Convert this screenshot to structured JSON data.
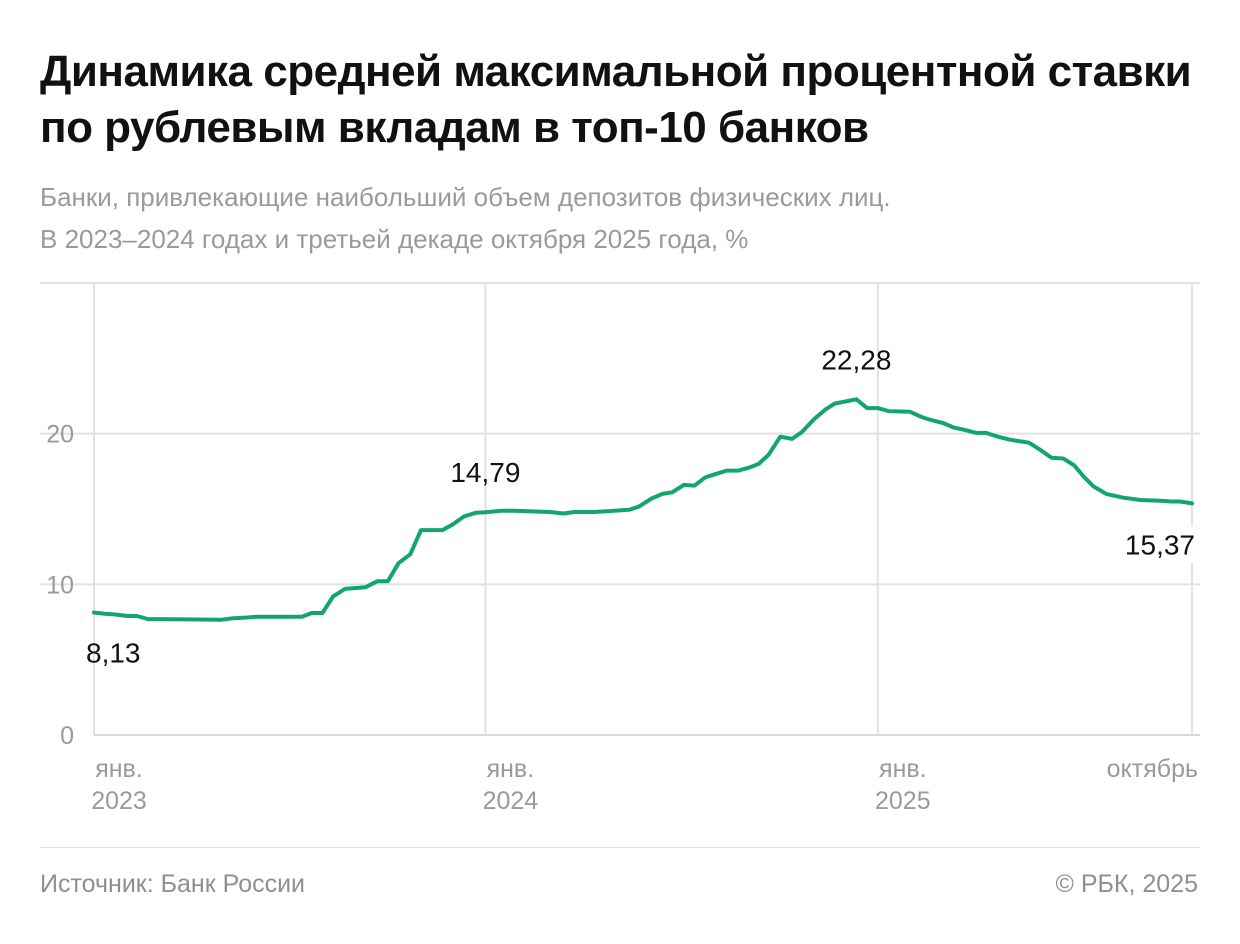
{
  "chart_data": {
    "type": "line",
    "title": "Динамика средней максимальной процентной ставки по рублевым вкладам в топ-10 банков",
    "subtitle_lines": [
      "Банки, привлекающие наибольший объем депозитов физических лиц.",
      "В 2023–2024 годах и третьей декаде октября 2025 года, %"
    ],
    "xlabel": "",
    "ylabel": "",
    "ylim": [
      0,
      30
    ],
    "xlim": [
      "2023-01-01",
      "2025-10-21"
    ],
    "grid": true,
    "line_color": "#13a66a",
    "y_ticks": [
      {
        "value": 0,
        "label": "0"
      },
      {
        "value": 10,
        "label": "10"
      },
      {
        "value": 20,
        "label": "20"
      }
    ],
    "x_ticks": [
      {
        "date": "2023-01-01",
        "line1": "янв.",
        "line2": "2023"
      },
      {
        "date": "2024-01-01",
        "line1": "янв.",
        "line2": "2024"
      },
      {
        "date": "2025-01-01",
        "line1": "янв.",
        "line2": "2025"
      },
      {
        "date": "2025-10-21",
        "line1": "октябрь",
        "line2": ""
      }
    ],
    "annotations": [
      {
        "date": "2023-01-01",
        "value": 8.13,
        "label": "8,13",
        "position": "below"
      },
      {
        "date": "2024-01-01",
        "value": 14.79,
        "label": "14,79",
        "position": "above"
      },
      {
        "date": "2024-12-12",
        "value": 22.28,
        "label": "22,28",
        "position": "above"
      },
      {
        "date": "2025-10-21",
        "value": 15.37,
        "label": "15,37",
        "position": "below"
      }
    ],
    "series": [
      {
        "points": [
          [
            "2023-01-01",
            8.13
          ],
          [
            "2023-01-11",
            8.05
          ],
          [
            "2023-01-21",
            8.0
          ],
          [
            "2023-02-01",
            7.9
          ],
          [
            "2023-02-10",
            7.9
          ],
          [
            "2023-02-20",
            7.7
          ],
          [
            "2023-04-30",
            7.65
          ],
          [
            "2023-05-11",
            7.75
          ],
          [
            "2023-05-24",
            7.8
          ],
          [
            "2023-06-02",
            7.85
          ],
          [
            "2023-07-14",
            7.85
          ],
          [
            "2023-07-23",
            8.1
          ],
          [
            "2023-08-02",
            8.1
          ],
          [
            "2023-08-12",
            9.2
          ],
          [
            "2023-08-23",
            9.7
          ],
          [
            "2023-09-11",
            9.8
          ],
          [
            "2023-09-22",
            10.2
          ],
          [
            "2023-10-02",
            10.2
          ],
          [
            "2023-10-12",
            11.4
          ],
          [
            "2023-10-23",
            12.0
          ],
          [
            "2023-11-02",
            13.6
          ],
          [
            "2023-11-22",
            13.6
          ],
          [
            "2023-12-02",
            14.0
          ],
          [
            "2023-12-12",
            14.5
          ],
          [
            "2023-12-23",
            14.75
          ],
          [
            "2024-01-01",
            14.79
          ],
          [
            "2024-01-16",
            14.88
          ],
          [
            "2024-01-28",
            14.88
          ],
          [
            "2024-03-01",
            14.8
          ],
          [
            "2024-03-14",
            14.7
          ],
          [
            "2024-03-24",
            14.8
          ],
          [
            "2024-04-12",
            14.8
          ],
          [
            "2024-05-14",
            14.95
          ],
          [
            "2024-05-23",
            15.15
          ],
          [
            "2024-06-04",
            15.7
          ],
          [
            "2024-06-14",
            16.0
          ],
          [
            "2024-06-23",
            16.1
          ],
          [
            "2024-07-04",
            16.6
          ],
          [
            "2024-07-14",
            16.55
          ],
          [
            "2024-07-24",
            17.1
          ],
          [
            "2024-08-02",
            17.3
          ],
          [
            "2024-08-13",
            17.55
          ],
          [
            "2024-08-24",
            17.55
          ],
          [
            "2024-09-03",
            17.75
          ],
          [
            "2024-09-12",
            18.0
          ],
          [
            "2024-09-21",
            18.6
          ],
          [
            "2024-10-02",
            19.8
          ],
          [
            "2024-10-13",
            19.65
          ],
          [
            "2024-10-22",
            20.1
          ],
          [
            "2024-11-03",
            21.0
          ],
          [
            "2024-11-13",
            21.6
          ],
          [
            "2024-11-22",
            22.0
          ],
          [
            "2024-12-12",
            22.28
          ],
          [
            "2024-12-22",
            21.7
          ],
          [
            "2025-01-01",
            21.7
          ],
          [
            "2025-01-11",
            21.5
          ],
          [
            "2025-01-31",
            21.45
          ],
          [
            "2025-02-11",
            21.1
          ],
          [
            "2025-02-20",
            20.9
          ],
          [
            "2025-03-03",
            20.7
          ],
          [
            "2025-03-13",
            20.4
          ],
          [
            "2025-03-23",
            20.25
          ],
          [
            "2025-04-03",
            20.05
          ],
          [
            "2025-04-12",
            20.05
          ],
          [
            "2025-04-23",
            19.8
          ],
          [
            "2025-05-04",
            19.6
          ],
          [
            "2025-05-22",
            19.4
          ],
          [
            "2025-06-02",
            18.9
          ],
          [
            "2025-06-12",
            18.4
          ],
          [
            "2025-06-23",
            18.35
          ],
          [
            "2025-07-03",
            17.9
          ],
          [
            "2025-07-12",
            17.15
          ],
          [
            "2025-07-21",
            16.5
          ],
          [
            "2025-08-02",
            16.0
          ],
          [
            "2025-08-18",
            15.75
          ],
          [
            "2025-09-03",
            15.6
          ],
          [
            "2025-09-22",
            15.55
          ],
          [
            "2025-10-01",
            15.5
          ],
          [
            "2025-10-10",
            15.5
          ],
          [
            "2025-10-21",
            15.37
          ]
        ]
      }
    ]
  },
  "footer": {
    "source": "Источник: Банк России",
    "copyright": "© РБК, 2025"
  }
}
